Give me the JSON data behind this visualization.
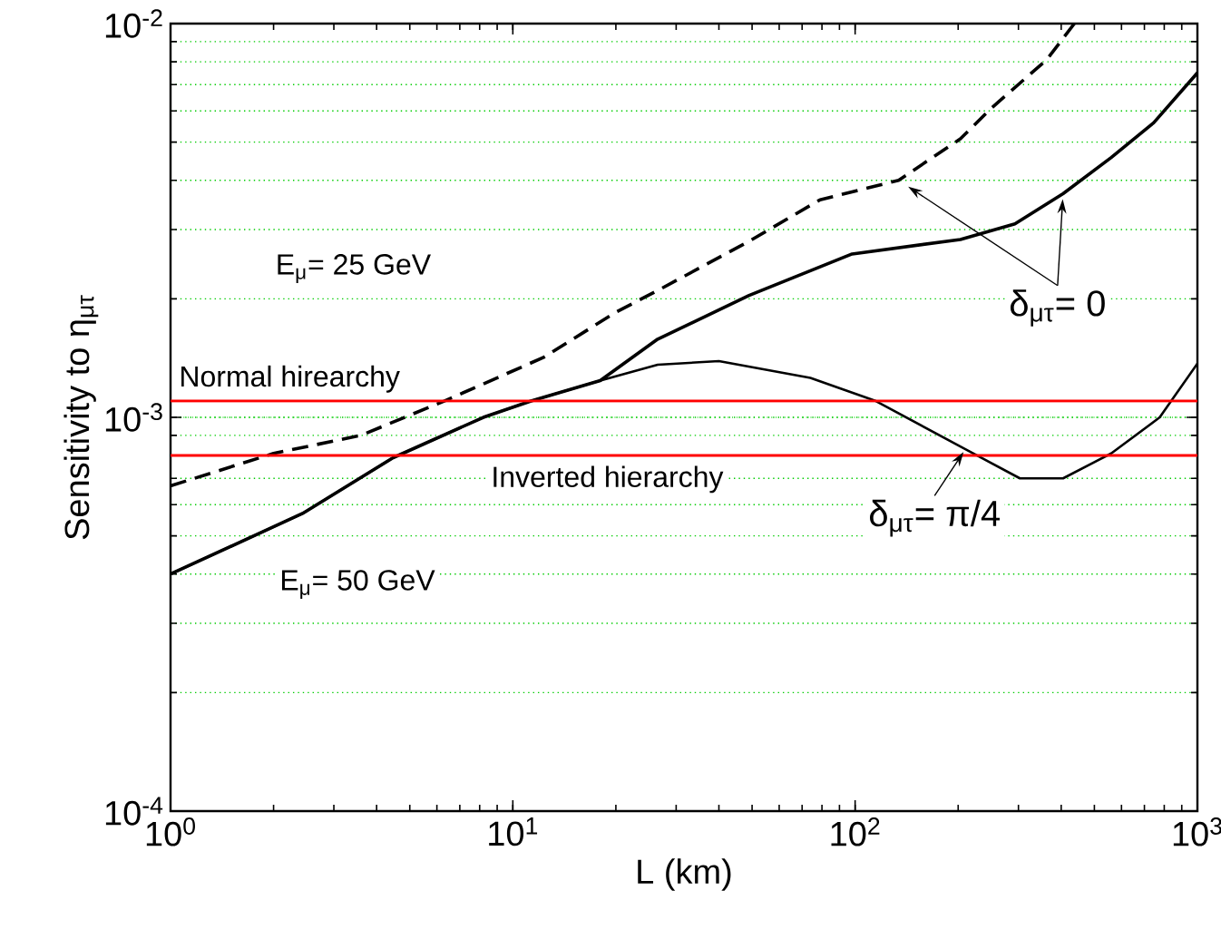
{
  "chart_data": {
    "type": "line",
    "xlabel": "L (km)",
    "ylabel": "Sensitivity to η$_{μτ}$",
    "log": "xy",
    "grid": "y",
    "xlim": [
      1,
      1000
    ],
    "ylim": [
      0.0001,
      0.01
    ],
    "xticks": [
      {
        "value": 1,
        "label": "10$^{0}$"
      },
      {
        "value": 10,
        "label": "10$^{1}$"
      },
      {
        "value": 100,
        "label": "10$^{2}$"
      },
      {
        "value": 1000,
        "label": "10$^{3}$"
      }
    ],
    "yticks": [
      {
        "value": 0.0001,
        "label": "10$^{-4}$"
      },
      {
        "value": 0.001,
        "label": "10$^{-3}$"
      },
      {
        "value": 0.01,
        "label": "10$^{-2}$"
      }
    ],
    "series": [
      {
        "color": "#000000",
        "line_style": "dashed",
        "x": [
          1,
          2.0,
          3.6,
          6.3,
          12.3,
          20,
          26.5,
          49,
          79,
          134,
          203,
          250,
          363,
          437
        ],
        "values": [
          0.00067,
          0.00081,
          0.0009,
          0.0011,
          0.00142,
          0.00185,
          0.0021,
          0.0028,
          0.00357,
          0.004,
          0.0051,
          0.0061,
          0.0081,
          0.01
        ]
      },
      {
        "color": "#000000",
        "line_style": "solid",
        "x": [
          1,
          2.43,
          4.47,
          8.2,
          11.3,
          18,
          26.5,
          49,
          98,
          203,
          293,
          405,
          560,
          745,
          1000
        ],
        "values": [
          0.0004,
          0.00057,
          0.00079,
          0.001,
          0.0011,
          0.00124,
          0.00158,
          0.00204,
          0.0026,
          0.00283,
          0.0031,
          0.0037,
          0.00457,
          0.0056,
          0.0075
        ]
      },
      {
        "color": "#000000",
        "line_style": "solid",
        "x": [
          1,
          2.43,
          4.47,
          8.2,
          11.3,
          18,
          26.5,
          40,
          74,
          115,
          210,
          303,
          405,
          560,
          776,
          1000
        ],
        "values": [
          0.0004,
          0.00057,
          0.00079,
          0.001,
          0.0011,
          0.00124,
          0.00136,
          0.00139,
          0.00126,
          0.0011,
          0.00083,
          0.0007,
          0.0007,
          0.00081,
          0.001,
          0.00137
        ]
      }
    ],
    "ref_lines": [
      {
        "axis": "y",
        "value": 0.0011,
        "label": "Normal hirearchy",
        "color": "#ff0000"
      },
      {
        "axis": "y",
        "value": 0.0008,
        "label": "Inverted hierarchy",
        "color": "#ff0000"
      }
    ],
    "annotations": [
      "E$_{μ}$= 25 GeV",
      "E$_{μ}$= 50 GeV",
      {
        "text": "δ$_{μτ}$= 0",
        "x": 405,
        "y": 0.0037
      },
      {
        "text": "δ$_{μτ}$= π/4",
        "x": 210,
        "y": 0.00083
      }
    ]
  }
}
